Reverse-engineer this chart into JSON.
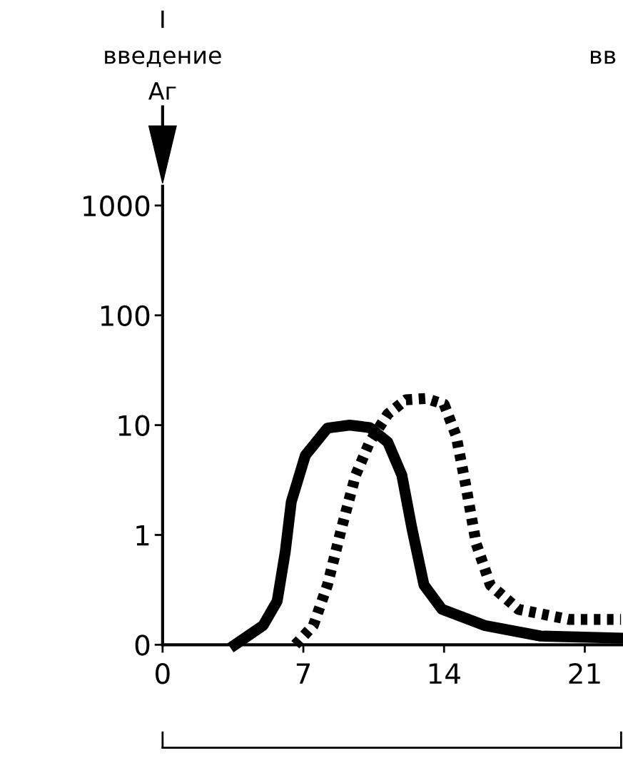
{
  "chart_data": {
    "type": "line",
    "annotations": [
      "I",
      "введение",
      "Аг",
      "вв"
    ],
    "xlim": [
      0,
      22.9
    ],
    "xticks": [
      0,
      7,
      14,
      21
    ],
    "ylim": [
      0.1,
      1500
    ],
    "log": true,
    "yticks": [
      {
        "value": 0.1,
        "label": "0"
      },
      1,
      10,
      100,
      1000
    ],
    "grid": false,
    "legend": false,
    "series": [
      {
        "color": "#000000",
        "line_style": "solid",
        "x": [
          3.6,
          5.0,
          5.7,
          6.1,
          6.4,
          7.1,
          8.2,
          9.3,
          10.3,
          11.2,
          11.9,
          12.4,
          13.0,
          13.9,
          16.0,
          18.8,
          22.8
        ],
        "values": [
          0.1,
          0.15,
          0.25,
          0.7,
          2,
          5.3,
          9.4,
          10,
          9.5,
          7,
          3.5,
          1.15,
          0.35,
          0.21,
          0.15,
          0.12,
          0.115
        ]
      },
      {
        "color": "#000000",
        "line_style": "dotted",
        "x": [
          6.6,
          7.5,
          8.2,
          8.9,
          9.6,
          10.3,
          11.2,
          12.1,
          13.1,
          14.0,
          14.6,
          15.1,
          15.6,
          16.3,
          17.7,
          20.2,
          22.8
        ],
        "values": [
          0.1,
          0.15,
          0.35,
          1.15,
          3.5,
          7,
          12.6,
          17,
          17.5,
          15.5,
          8,
          2.7,
          0.83,
          0.35,
          0.21,
          0.17,
          0.17
        ]
      }
    ]
  }
}
